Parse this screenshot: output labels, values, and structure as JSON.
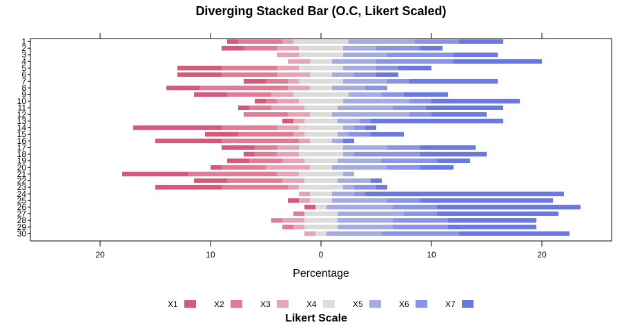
{
  "chart_data": {
    "type": "bar",
    "orientation": "horizontal",
    "stacking": "diverging",
    "title": "Diverging Stacked Bar (O.C, Likert Scaled)",
    "xlabel": "Percentage",
    "xlim": [
      -26,
      26
    ],
    "xticks": [
      -20,
      -10,
      0,
      10,
      20
    ],
    "xtick_labels": [
      "20",
      "10",
      "0",
      "10",
      "20"
    ],
    "categories": [
      "1",
      "2",
      "3",
      "4",
      "5",
      "6",
      "7",
      "8",
      "9",
      "10",
      "11",
      "12",
      "13",
      "14",
      "15",
      "16",
      "17",
      "18",
      "19",
      "20",
      "21",
      "22",
      "23",
      "24",
      "25",
      "26",
      "27",
      "28",
      "29",
      "30"
    ],
    "neutral_series": "X4",
    "series": [
      {
        "name": "X1",
        "color": "#D6587A",
        "values": [
          1,
          2,
          0,
          0,
          4,
          4,
          2,
          3,
          3,
          1,
          1,
          0,
          1,
          8,
          3,
          6,
          3,
          1,
          2,
          1,
          6,
          3,
          6,
          0,
          1,
          1,
          0,
          0,
          0,
          0
        ]
      },
      {
        "name": "X2",
        "color": "#E07C96",
        "values": [
          4,
          3,
          0,
          0,
          5,
          5,
          2,
          8,
          4,
          1,
          2,
          4,
          0,
          5,
          5,
          7,
          2,
          2,
          3,
          4,
          8,
          5,
          6,
          0,
          0,
          0,
          1,
          1,
          1,
          0
        ]
      },
      {
        "name": "X3",
        "color": "#E4A6B6",
        "values": [
          1,
          2,
          2,
          2,
          2,
          3,
          1,
          2,
          2,
          2,
          3,
          2,
          1,
          2,
          1,
          1,
          2,
          2,
          2,
          4,
          2,
          2,
          1,
          1,
          1,
          0,
          0,
          2,
          1,
          1
        ]
      },
      {
        "name": "X4",
        "color": "#DCDCDC",
        "values": [
          5,
          4,
          4,
          2,
          4,
          2,
          4,
          2,
          5,
          4,
          3,
          2,
          3,
          4,
          3,
          2,
          4,
          4,
          3,
          2,
          4,
          3,
          4,
          2,
          2,
          1,
          3,
          3,
          3,
          1
        ]
      },
      {
        "name": "X5",
        "color": "#A4ACE2",
        "values": [
          6,
          3,
          4,
          4,
          3,
          2,
          4,
          3,
          3,
          6,
          5,
          7,
          2,
          1,
          1,
          1,
          4,
          1,
          4,
          5,
          1,
          3,
          1,
          2,
          5,
          6,
          6,
          5,
          5,
          5
        ]
      },
      {
        "name": "X6",
        "color": "#8A94E4",
        "values": [
          4,
          4,
          6,
          7,
          2,
          2,
          2,
          2,
          2,
          2,
          3,
          2,
          1,
          1,
          2,
          0,
          3,
          6,
          5,
          3,
          0,
          0,
          2,
          1,
          3,
          4,
          3,
          5,
          5,
          7
        ]
      },
      {
        "name": "X7",
        "color": "#6B78DF",
        "values": [
          4,
          2,
          4,
          8,
          3,
          2,
          8,
          0,
          4,
          8,
          7,
          5,
          12,
          1,
          3,
          1,
          5,
          6,
          3,
          3,
          0,
          1,
          1,
          18,
          12,
          13,
          11,
          8,
          8,
          10
        ]
      }
    ],
    "legend": {
      "title": "Likert Scale",
      "position": "bottom",
      "entries": [
        "X1",
        "X2",
        "X3",
        "X4",
        "X5",
        "X6",
        "X7"
      ]
    },
    "grid": false
  }
}
